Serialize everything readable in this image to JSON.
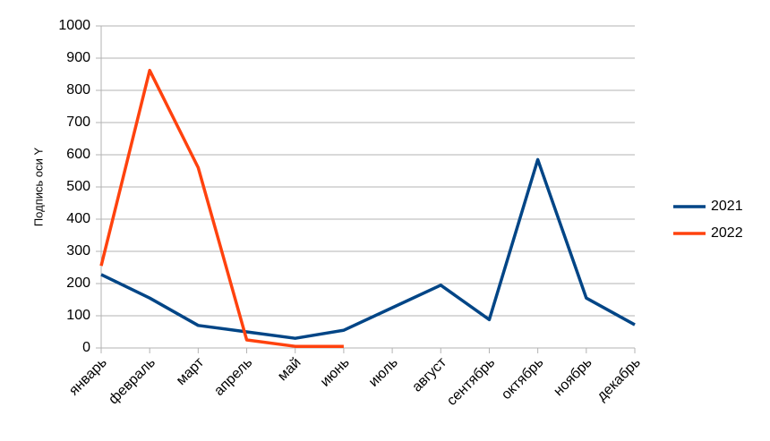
{
  "chart_data": {
    "type": "line",
    "y_axis_label": "Подпись оси Y",
    "categories": [
      "январь",
      "февраль",
      "март",
      "апрель",
      "май",
      "июнь",
      "июль",
      "август",
      "сентябрь",
      "октябрь",
      "ноябрь",
      "декабрь"
    ],
    "series": [
      {
        "name": "2021",
        "color": "#004586",
        "values": [
          228,
          155,
          70,
          50,
          30,
          55,
          125,
          195,
          88,
          585,
          155,
          72
        ]
      },
      {
        "name": "2022",
        "color": "#ff420e",
        "values": [
          255,
          862,
          560,
          25,
          5,
          5,
          null,
          null,
          null,
          null,
          null,
          null
        ]
      }
    ],
    "ylim": [
      0,
      1000
    ],
    "yticks": [
      0,
      100,
      200,
      300,
      400,
      500,
      600,
      700,
      800,
      900,
      1000
    ],
    "grid": true,
    "legend": "right"
  }
}
